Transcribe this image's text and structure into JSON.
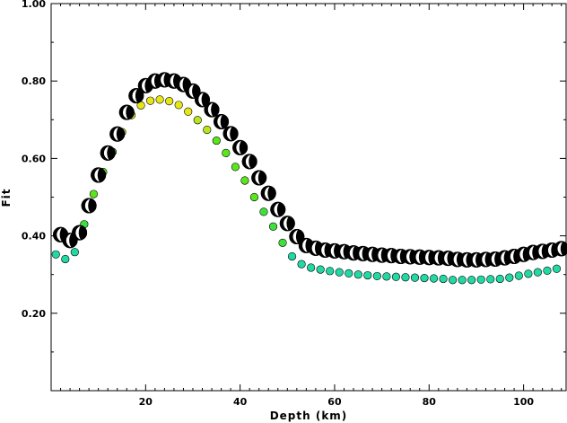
{
  "chart_data": {
    "type": "scatter",
    "xlabel": "Depth (km)",
    "ylabel": "Fit",
    "xlim": [
      0,
      109
    ],
    "ylim": [
      0.0,
      1.0
    ],
    "x_ticks": [
      20,
      40,
      60,
      80,
      100
    ],
    "x_tick_labels": [
      "20",
      "40",
      "60",
      "80",
      "100"
    ],
    "y_ticks": [
      0.2,
      0.4,
      0.6,
      0.8,
      1.0
    ],
    "y_tick_labels": [
      "0.20",
      "0.40",
      "0.60",
      "0.80",
      "1.00"
    ],
    "grid": false,
    "legend": "none",
    "series": [
      {
        "marker": "focal-mechanism-beachball",
        "color": "#000000",
        "x": [
          2,
          4,
          6,
          8,
          10,
          12,
          14,
          16,
          18,
          20,
          22,
          24,
          26,
          28,
          30,
          32,
          34,
          36,
          38,
          40,
          42,
          44,
          46,
          48,
          50,
          52,
          54,
          56,
          58,
          60,
          62,
          64,
          66,
          68,
          70,
          72,
          74,
          76,
          78,
          80,
          82,
          84,
          86,
          88,
          90,
          92,
          94,
          96,
          98,
          100,
          102,
          104,
          106,
          108
        ],
        "y": [
          0.403,
          0.388,
          0.408,
          0.478,
          0.557,
          0.614,
          0.663,
          0.719,
          0.762,
          0.788,
          0.8,
          0.803,
          0.8,
          0.791,
          0.774,
          0.752,
          0.726,
          0.695,
          0.664,
          0.628,
          0.592,
          0.55,
          0.51,
          0.468,
          0.432,
          0.398,
          0.375,
          0.368,
          0.363,
          0.361,
          0.359,
          0.356,
          0.354,
          0.352,
          0.35,
          0.349,
          0.347,
          0.346,
          0.345,
          0.344,
          0.343,
          0.342,
          0.339,
          0.338,
          0.338,
          0.339,
          0.34,
          0.343,
          0.347,
          0.352,
          0.357,
          0.36,
          0.363,
          0.367
        ]
      },
      {
        "marker": "circle",
        "color_scale": "fit-value",
        "x": [
          1,
          3,
          5,
          7,
          9,
          11,
          13,
          15,
          17,
          19,
          21,
          23,
          25,
          27,
          29,
          31,
          33,
          35,
          37,
          39,
          41,
          43,
          45,
          47,
          49,
          51,
          53,
          55,
          57,
          59,
          61,
          63,
          65,
          67,
          69,
          71,
          73,
          75,
          77,
          79,
          81,
          83,
          85,
          87,
          89,
          91,
          93,
          95,
          97,
          99,
          101,
          103,
          105,
          107
        ],
        "y": [
          0.352,
          0.34,
          0.358,
          0.43,
          0.508,
          0.565,
          0.617,
          0.668,
          0.712,
          0.737,
          0.749,
          0.752,
          0.748,
          0.738,
          0.721,
          0.699,
          0.674,
          0.646,
          0.614,
          0.578,
          0.543,
          0.5,
          0.462,
          0.424,
          0.382,
          0.347,
          0.327,
          0.318,
          0.313,
          0.309,
          0.306,
          0.303,
          0.3,
          0.298,
          0.296,
          0.295,
          0.294,
          0.293,
          0.292,
          0.291,
          0.29,
          0.289,
          0.286,
          0.286,
          0.286,
          0.287,
          0.288,
          0.289,
          0.292,
          0.297,
          0.302,
          0.306,
          0.31,
          0.315
        ]
      }
    ]
  }
}
